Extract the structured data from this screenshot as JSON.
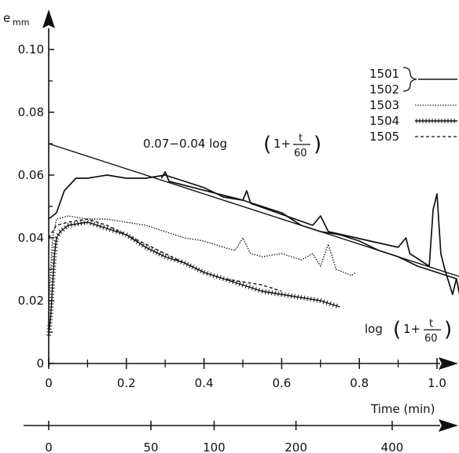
{
  "chart_data": {
    "type": "line",
    "ylabel": "e",
    "ylabel_sub": "mm",
    "xlabel_lower": "Time (min)",
    "log_label": {
      "prefix": "log",
      "lparen": "(",
      "one_plus": "1+",
      "num": "t",
      "den": "60",
      "rparen": ")"
    },
    "xlim": [
      0,
      1.1
    ],
    "ylim": [
      0,
      0.1
    ],
    "x_ticks": [
      {
        "value": 0,
        "label": "0"
      },
      {
        "value": 0.2,
        "label": "0.2"
      },
      {
        "value": 0.4,
        "label": "0.4"
      },
      {
        "value": 0.6,
        "label": "0.6"
      },
      {
        "value": 0.8,
        "label": "0.8"
      },
      {
        "value": 1.0,
        "label": "1.0"
      }
    ],
    "y_ticks": [
      {
        "value": 0,
        "label": "0"
      },
      {
        "value": 0.02,
        "label": "0.02"
      },
      {
        "value": 0.04,
        "label": "0.04"
      },
      {
        "value": 0.06,
        "label": "0.06"
      },
      {
        "value": 0.08,
        "label": "0.08"
      },
      {
        "value": 0.1,
        "label": "0.10"
      }
    ],
    "time_ticks": [
      {
        "value": 0,
        "label": "0"
      },
      {
        "value": 50,
        "label": "50"
      },
      {
        "value": 100,
        "label": "100"
      },
      {
        "value": 200,
        "label": "200"
      },
      {
        "value": 400,
        "label": "400"
      }
    ],
    "fit_line": {
      "label_prefix": "0.07−0.04 log",
      "intercept": 0.07,
      "slope": -0.04,
      "x": [
        0,
        1.1
      ]
    },
    "legend_group_label": [
      "1501",
      "1502"
    ],
    "series": [
      {
        "name": "1501",
        "style": "solid",
        "points": [
          [
            0,
            0.046
          ],
          [
            0.02,
            0.048
          ],
          [
            0.04,
            0.055
          ],
          [
            0.07,
            0.059
          ],
          [
            0.1,
            0.059
          ],
          [
            0.15,
            0.06
          ],
          [
            0.2,
            0.059
          ],
          [
            0.25,
            0.059
          ],
          [
            0.3,
            0.06
          ],
          [
            0.35,
            0.058
          ],
          [
            0.4,
            0.056
          ],
          [
            0.45,
            0.053
          ],
          [
            0.5,
            0.052
          ],
          [
            0.55,
            0.05
          ],
          [
            0.6,
            0.048
          ],
          [
            0.65,
            0.044
          ],
          [
            0.7,
            0.042
          ],
          [
            0.75,
            0.041
          ],
          [
            0.8,
            0.039
          ],
          [
            0.85,
            0.036
          ],
          [
            0.9,
            0.034
          ],
          [
            0.95,
            0.031
          ],
          [
            1.0,
            0.029
          ],
          [
            1.05,
            0.027
          ]
        ]
      },
      {
        "name": "1502",
        "style": "solid",
        "points": [
          [
            0.29,
            0.059
          ],
          [
            0.3,
            0.061
          ],
          [
            0.31,
            0.058
          ],
          [
            0.5,
            0.052
          ],
          [
            0.51,
            0.055
          ],
          [
            0.52,
            0.051
          ],
          [
            0.68,
            0.044
          ],
          [
            0.7,
            0.047
          ],
          [
            0.72,
            0.042
          ],
          [
            0.9,
            0.037
          ],
          [
            0.92,
            0.04
          ],
          [
            0.93,
            0.035
          ],
          [
            0.98,
            0.031
          ],
          [
            0.99,
            0.049
          ],
          [
            1.0,
            0.054
          ],
          [
            1.01,
            0.035
          ],
          [
            1.02,
            0.03
          ],
          [
            1.04,
            0.022
          ],
          [
            1.05,
            0.027
          ],
          [
            1.06,
            0.021
          ],
          [
            1.07,
            0.026
          ]
        ]
      },
      {
        "name": "1503",
        "style": "dotted",
        "points": [
          [
            0,
            0.02
          ],
          [
            0.01,
            0.04
          ],
          [
            0.02,
            0.046
          ],
          [
            0.05,
            0.047
          ],
          [
            0.1,
            0.046
          ],
          [
            0.15,
            0.046
          ],
          [
            0.2,
            0.045
          ],
          [
            0.25,
            0.044
          ],
          [
            0.3,
            0.042
          ],
          [
            0.35,
            0.04
          ],
          [
            0.4,
            0.039
          ],
          [
            0.45,
            0.037
          ],
          [
            0.48,
            0.036
          ],
          [
            0.5,
            0.04
          ],
          [
            0.52,
            0.035
          ],
          [
            0.55,
            0.034
          ],
          [
            0.6,
            0.035
          ],
          [
            0.65,
            0.033
          ],
          [
            0.68,
            0.035
          ],
          [
            0.7,
            0.031
          ],
          [
            0.72,
            0.038
          ],
          [
            0.74,
            0.03
          ],
          [
            0.76,
            0.029
          ],
          [
            0.78,
            0.028
          ],
          [
            0.79,
            0.029
          ]
        ]
      },
      {
        "name": "1504",
        "style": "crossed",
        "points": [
          [
            0,
            0.009
          ],
          [
            0.005,
            0.015
          ],
          [
            0.01,
            0.025
          ],
          [
            0.015,
            0.035
          ],
          [
            0.02,
            0.04
          ],
          [
            0.03,
            0.042
          ],
          [
            0.05,
            0.044
          ],
          [
            0.1,
            0.045
          ],
          [
            0.15,
            0.043
          ],
          [
            0.2,
            0.041
          ],
          [
            0.25,
            0.037
          ],
          [
            0.3,
            0.034
          ],
          [
            0.35,
            0.032
          ],
          [
            0.4,
            0.029
          ],
          [
            0.45,
            0.027
          ],
          [
            0.5,
            0.025
          ],
          [
            0.55,
            0.023
          ],
          [
            0.6,
            0.022
          ],
          [
            0.65,
            0.021
          ],
          [
            0.7,
            0.02
          ],
          [
            0.75,
            0.018
          ]
        ]
      },
      {
        "name": "1505",
        "style": "dashed",
        "points": [
          [
            0,
            0.04
          ],
          [
            0.02,
            0.044
          ],
          [
            0.05,
            0.045
          ],
          [
            0.1,
            0.046
          ],
          [
            0.15,
            0.044
          ],
          [
            0.2,
            0.041
          ],
          [
            0.25,
            0.038
          ],
          [
            0.3,
            0.035
          ],
          [
            0.35,
            0.032
          ],
          [
            0.4,
            0.029
          ],
          [
            0.45,
            0.027
          ],
          [
            0.5,
            0.026
          ],
          [
            0.55,
            0.025
          ],
          [
            0.6,
            0.023
          ]
        ]
      }
    ]
  }
}
